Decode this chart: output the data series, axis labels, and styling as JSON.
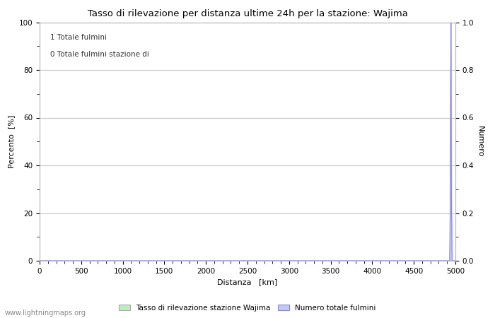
{
  "title": "Tasso di rilevazione per distanza ultime 24h per la stazione: Wajima",
  "xlabel": "Distanza   [km]",
  "ylabel_left": "Percento  [%]",
  "ylabel_right": "Numero",
  "xlim": [
    0,
    5000
  ],
  "ylim_left": [
    0,
    100
  ],
  "ylim_right": [
    0,
    1.0
  ],
  "xticks": [
    0,
    500,
    1000,
    1500,
    2000,
    2500,
    3000,
    3500,
    4000,
    4500,
    5000
  ],
  "yticks_left": [
    0,
    20,
    40,
    60,
    80,
    100
  ],
  "yticks_right": [
    0.0,
    0.2,
    0.4,
    0.6,
    0.8,
    1.0
  ],
  "annotation_line1": "1 Totale fulmini",
  "annotation_line2": "0 Totale fulmini stazione di",
  "bar_color": "#b8f0b8",
  "line_color": "#c0c8ff",
  "line_edge_color": "#8888dd",
  "background_color": "#ffffff",
  "grid_color": "#c8c8c8",
  "watermark": "www.lightningmaps.org",
  "legend_bar_label": "Tasso di rilevazione stazione Wajima",
  "legend_line_label": "Numero totale fulmini",
  "spike_x": [
    0,
    4930,
    4932,
    4934,
    4936,
    4938,
    4940,
    4942,
    4944,
    4946,
    4948,
    4950,
    4952,
    4953,
    4954,
    4956,
    4958,
    4960,
    5000
  ],
  "spike_y": [
    0,
    0,
    0.05,
    0.1,
    0.18,
    0.25,
    0.5,
    0.75,
    0.82,
    1.0,
    0.82,
    0.5,
    0.25,
    0.2,
    0.19,
    0.18,
    0.05,
    0.0,
    0.0
  ]
}
